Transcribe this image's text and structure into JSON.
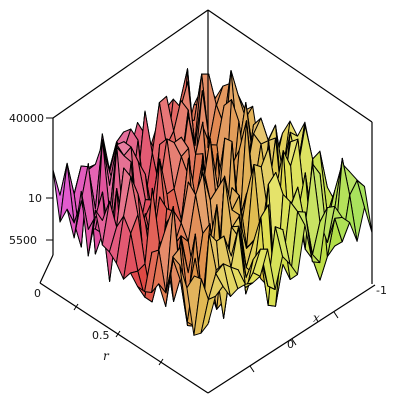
{
  "chart_data": {
    "type": "surface",
    "title": "",
    "xlabel": "x",
    "ylabel": "r",
    "zlabel": "",
    "xlim": [
      -1,
      1
    ],
    "ylim": [
      0,
      1
    ],
    "zlim": [
      5500,
      40000
    ],
    "x_ticks": [
      "0",
      "-1"
    ],
    "y_ticks": [
      "0",
      "0.5"
    ],
    "z_ticks": [
      "40000",
      "10",
      "5500"
    ],
    "grid": false,
    "legend": "none",
    "coloring": "hue by x and y",
    "mesh": {
      "rows": 22,
      "cols": 22,
      "amplitude_pattern": "high-frequency noise"
    }
  }
}
